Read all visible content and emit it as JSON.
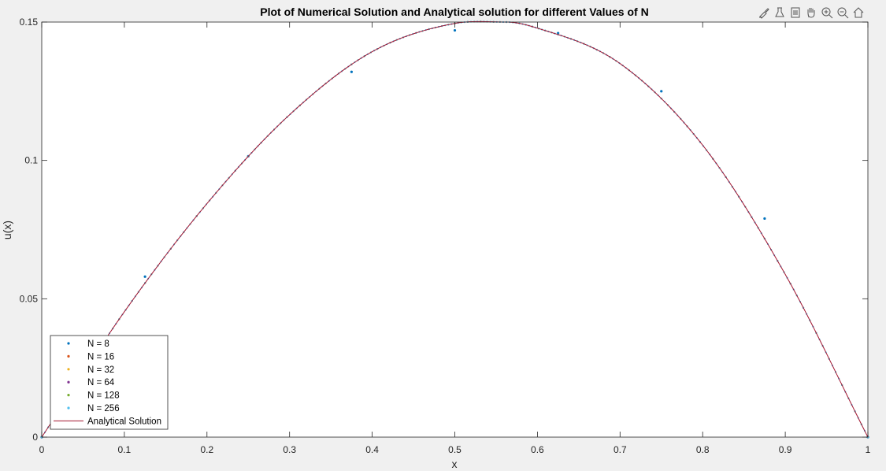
{
  "toolbar": {
    "icons": [
      "brush-icon",
      "data-tips-icon",
      "save-figure-icon",
      "pan-icon",
      "zoom-in-icon",
      "zoom-out-icon",
      "home-icon"
    ]
  },
  "chart_data": {
    "type": "line",
    "title": "Plot of Numerical Solution and Analytical solution for different Values of N",
    "xlabel": "x",
    "ylabel": "u(x)",
    "xlim": [
      0,
      1
    ],
    "ylim": [
      0,
      0.15
    ],
    "xticks": [
      "0",
      "0.1",
      "0.2",
      "0.3",
      "0.4",
      "0.5",
      "0.6",
      "0.7",
      "0.8",
      "0.9",
      "1"
    ],
    "yticks": [
      "0",
      "0.05",
      "0.1",
      "0.15"
    ],
    "grid": false,
    "legend_location": "bottom-left",
    "background": "#ffffff",
    "series": [
      {
        "name": "N = 8",
        "style": "points",
        "color": "#0072BD",
        "n": 8,
        "x": [
          0,
          0.125,
          0.25,
          0.375,
          0.5,
          0.625,
          0.75,
          0.875,
          1
        ],
        "y": [
          0,
          0.058,
          0.1015,
          0.132,
          0.147,
          0.146,
          0.125,
          0.079,
          0
        ]
      },
      {
        "name": "N = 16",
        "style": "points",
        "color": "#D95319",
        "n": 16
      },
      {
        "name": "N = 32",
        "style": "points",
        "color": "#EDB120",
        "n": 32
      },
      {
        "name": "N = 64",
        "style": "points",
        "color": "#7E2F8E",
        "n": 64
      },
      {
        "name": "N = 128",
        "style": "points",
        "color": "#77AC30",
        "n": 128
      },
      {
        "name": "N = 256",
        "style": "points",
        "color": "#4DBEEE",
        "n": 256
      },
      {
        "name": "Analytical Solution",
        "style": "line",
        "color": "#A2142F",
        "x": [
          0,
          0.1,
          0.2,
          0.3,
          0.4,
          0.5,
          0.5625,
          0.6,
          0.7,
          0.8,
          0.9,
          1
        ],
        "y": [
          0,
          0.0453,
          0.0844,
          0.1165,
          0.1393,
          0.1495,
          0.15,
          0.1478,
          0.135,
          0.1055,
          0.0588,
          0
        ]
      }
    ]
  }
}
